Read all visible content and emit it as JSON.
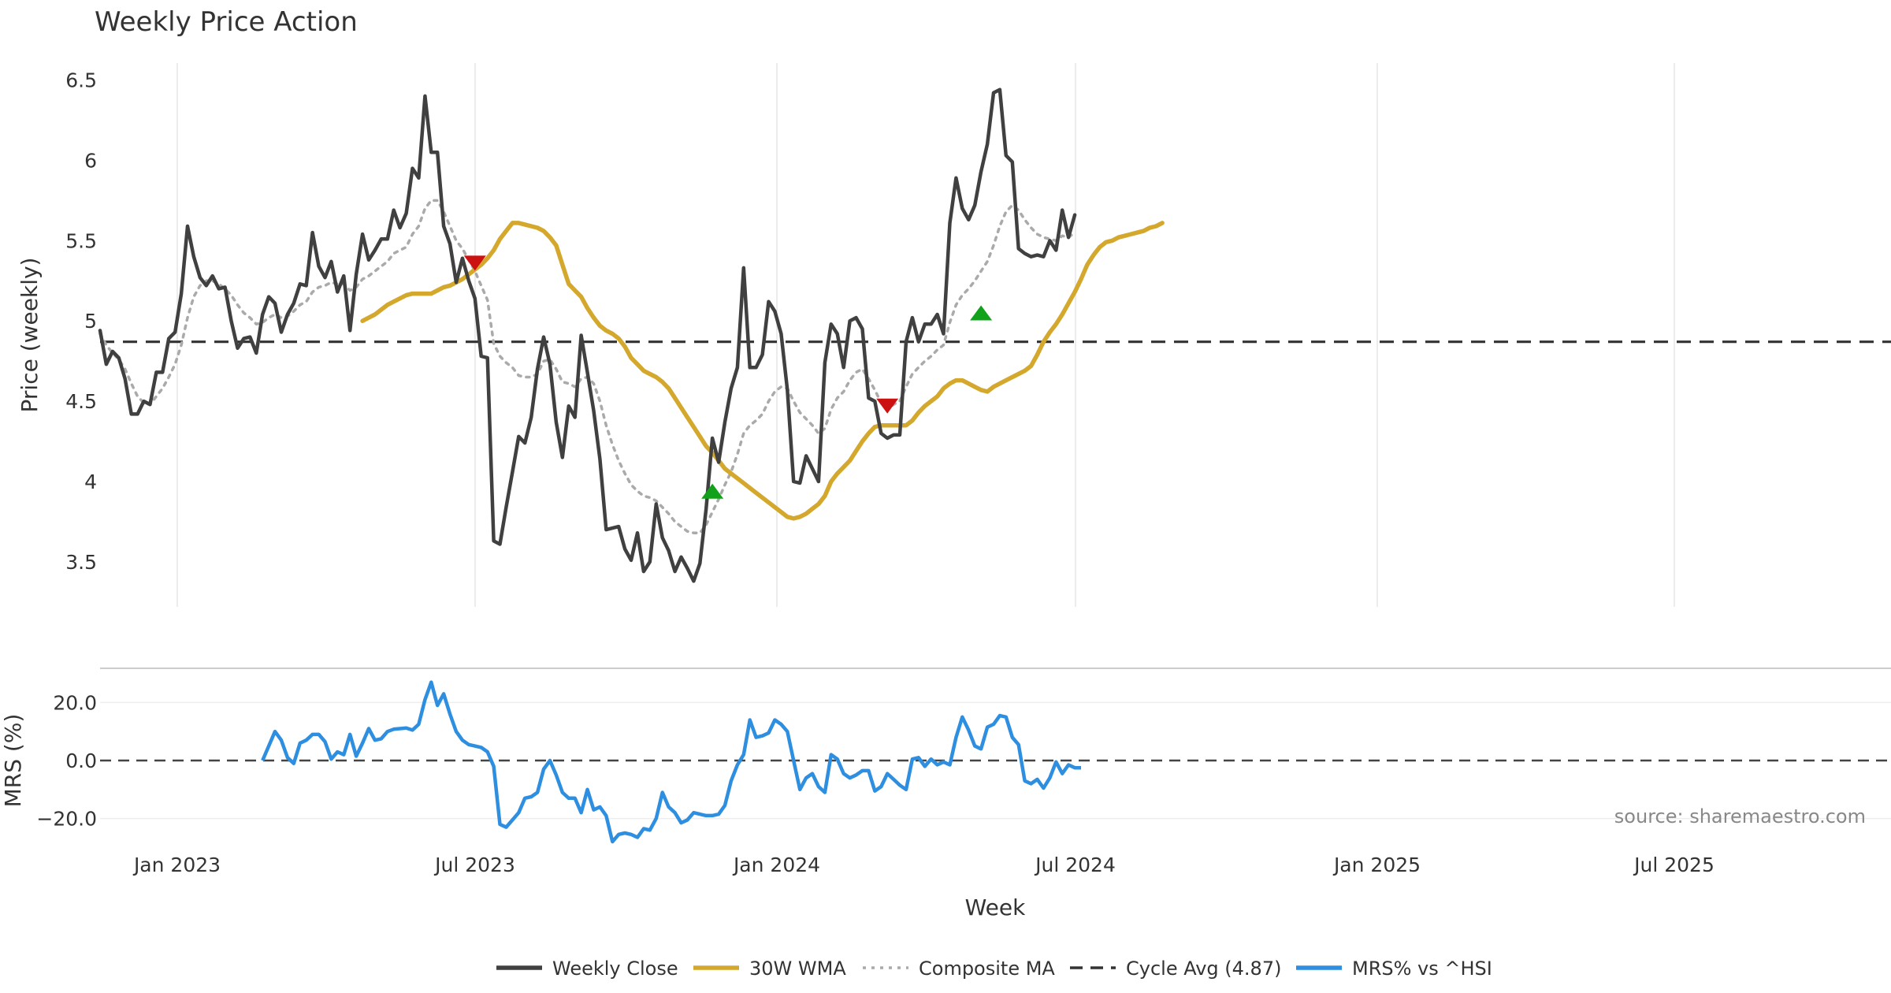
{
  "chart_data": {
    "type": "line",
    "title": "Weekly Price Action",
    "xlabel": "Week",
    "source_label": "source: sharemaestro.com",
    "x_ticks": [
      "Jan 2023",
      "Jul 2023",
      "Jan 2024",
      "Jul 2024",
      "Jan 2025",
      "Jul 2025"
    ],
    "price_panel": {
      "ylabel": "Price (weekly)",
      "ylim": [
        3.25,
        6.6
      ],
      "yticks": [
        "3.5",
        "4",
        "4.5",
        "5",
        "5.5",
        "6",
        "6.5"
      ],
      "series": [
        {
          "name": "Weekly Close",
          "color": "#404040",
          "values": [
            4.94,
            4.73,
            4.81,
            4.77,
            4.64,
            4.42,
            4.42,
            4.5,
            4.48,
            4.68,
            4.68,
            4.89,
            4.93,
            5.17,
            5.59,
            5.4,
            5.27,
            5.22,
            5.28,
            5.2,
            5.21,
            5.0,
            4.83,
            4.89,
            4.9,
            4.8,
            5.04,
            5.15,
            5.11,
            4.93,
            5.04,
            5.11,
            5.23,
            5.22,
            5.55,
            5.34,
            5.27,
            5.37,
            5.18,
            5.28,
            4.94,
            5.29,
            5.54,
            5.38,
            5.44,
            5.51,
            5.51,
            5.69,
            5.58,
            5.67,
            5.95,
            5.89,
            6.4,
            6.05,
            6.05,
            5.59,
            5.48,
            5.24,
            5.39,
            5.25,
            5.14,
            4.78,
            4.77,
            3.63,
            3.61,
            3.84,
            4.06,
            4.28,
            4.24,
            4.4,
            4.7,
            4.9,
            4.73,
            4.37,
            4.15,
            4.47,
            4.4,
            4.91,
            4.68,
            4.44,
            4.14,
            3.7,
            3.71,
            3.72,
            3.58,
            3.51,
            3.68,
            3.44,
            3.5,
            3.86,
            3.65,
            3.57,
            3.44,
            3.53,
            3.46,
            3.38,
            3.49,
            3.83,
            4.27,
            4.12,
            4.37,
            4.58,
            4.71,
            5.33,
            4.71,
            4.71,
            4.79,
            5.12,
            5.06,
            4.92,
            4.57,
            4.0,
            3.99,
            4.16,
            4.08,
            4.0,
            4.74,
            4.98,
            4.92,
            4.71,
            5.0,
            5.02,
            4.95,
            4.52,
            4.5,
            4.3,
            4.27,
            4.29,
            4.29,
            4.87,
            5.02,
            4.87,
            4.98,
            4.98,
            5.04,
            4.92,
            5.61,
            5.89,
            5.7,
            5.63,
            5.72,
            5.93,
            6.1,
            6.42,
            6.44,
            6.03,
            5.99,
            5.45,
            5.42,
            5.4,
            5.41,
            5.4,
            5.5,
            5.44,
            5.69,
            5.52,
            5.66
          ]
        },
        {
          "name": "30W WMA",
          "color": "#D4A82C",
          "values": [
            5.0,
            5.02,
            5.04,
            5.07,
            5.1,
            5.12,
            5.14,
            5.16,
            5.17,
            5.17,
            5.17,
            5.17,
            5.19,
            5.21,
            5.22,
            5.24,
            5.26,
            5.29,
            5.32,
            5.35,
            5.39,
            5.44,
            5.51,
            5.56,
            5.61,
            5.61,
            5.6,
            5.59,
            5.58,
            5.56,
            5.52,
            5.47,
            5.35,
            5.23,
            5.19,
            5.15,
            5.08,
            5.02,
            4.97,
            4.94,
            4.92,
            4.89,
            4.84,
            4.77,
            4.73,
            4.69,
            4.67,
            4.65,
            4.62,
            4.58,
            4.52,
            4.46,
            4.4,
            4.34,
            4.28,
            4.22,
            4.18,
            4.13,
            4.08,
            4.05,
            4.02,
            3.99,
            3.96,
            3.93,
            3.9,
            3.87,
            3.84,
            3.81,
            3.78,
            3.77,
            3.78,
            3.8,
            3.83,
            3.86,
            3.91,
            4.0,
            4.05,
            4.09,
            4.13,
            4.19,
            4.25,
            4.3,
            4.34,
            4.35,
            4.35,
            4.35,
            4.35,
            4.35,
            4.38,
            4.43,
            4.47,
            4.5,
            4.53,
            4.58,
            4.61,
            4.63,
            4.63,
            4.61,
            4.59,
            4.57,
            4.56,
            4.59,
            4.61,
            4.63,
            4.65,
            4.67,
            4.69,
            4.72,
            4.79,
            4.87,
            4.93,
            4.98,
            5.04,
            5.11,
            5.18,
            5.26,
            5.35,
            5.41,
            5.46,
            5.49,
            5.5,
            5.52,
            5.53,
            5.54,
            5.55,
            5.56,
            5.58,
            5.59,
            5.61
          ]
        },
        {
          "name": "Composite MA",
          "color": "#AAAAAA",
          "values": [
            4.92,
            4.85,
            4.8,
            4.76,
            4.7,
            4.61,
            4.53,
            4.49,
            4.48,
            4.53,
            4.58,
            4.65,
            4.73,
            4.85,
            5.02,
            5.15,
            5.22,
            5.25,
            5.25,
            5.23,
            5.2,
            5.16,
            5.1,
            5.05,
            5.02,
            4.98,
            4.99,
            5.02,
            5.04,
            5.02,
            5.03,
            5.06,
            5.1,
            5.12,
            5.18,
            5.21,
            5.22,
            5.24,
            5.23,
            5.23,
            5.19,
            5.21,
            5.26,
            5.28,
            5.31,
            5.34,
            5.37,
            5.42,
            5.44,
            5.46,
            5.54,
            5.59,
            5.7,
            5.75,
            5.75,
            5.68,
            5.59,
            5.5,
            5.45,
            5.38,
            5.31,
            5.22,
            5.13,
            4.86,
            4.78,
            4.74,
            4.71,
            4.66,
            4.65,
            4.65,
            4.67,
            4.75,
            4.76,
            4.7,
            4.62,
            4.61,
            4.59,
            4.64,
            4.65,
            4.61,
            4.5,
            4.35,
            4.23,
            4.13,
            4.05,
            3.98,
            3.94,
            3.91,
            3.9,
            3.88,
            3.84,
            3.8,
            3.75,
            3.72,
            3.69,
            3.68,
            3.68,
            3.73,
            3.81,
            3.89,
            3.98,
            4.06,
            4.17,
            4.3,
            4.35,
            4.38,
            4.42,
            4.5,
            4.56,
            4.59,
            4.58,
            4.5,
            4.43,
            4.39,
            4.35,
            4.3,
            4.33,
            4.45,
            4.52,
            4.56,
            4.63,
            4.68,
            4.7,
            4.64,
            4.57,
            4.49,
            4.45,
            4.48,
            4.5,
            4.59,
            4.67,
            4.71,
            4.75,
            4.78,
            4.82,
            4.85,
            4.99,
            5.1,
            5.16,
            5.2,
            5.25,
            5.31,
            5.37,
            5.47,
            5.59,
            5.68,
            5.72,
            5.69,
            5.63,
            5.58,
            5.54,
            5.52,
            5.51,
            5.5,
            5.53,
            5.52,
            5.55
          ]
        }
      ],
      "cycle_avg": {
        "name": "Cycle Avg (4.87)",
        "value": 4.87,
        "color": "#333333"
      },
      "signals": [
        {
          "type": "sell",
          "index": 60,
          "price": 5.36,
          "color": "#CC1111"
        },
        {
          "type": "buy",
          "index": 98,
          "price": 3.94,
          "color": "#11A11B"
        },
        {
          "type": "sell",
          "index": 126,
          "price": 4.47,
          "color": "#CC1111"
        },
        {
          "type": "buy",
          "index": 141,
          "price": 5.05,
          "color": "#11A11B"
        }
      ]
    },
    "mrs_panel": {
      "ylabel": "MRS (%)",
      "ylim": [
        -32,
        32
      ],
      "yticks": [
        "−20.0",
        "0.0",
        "20.0"
      ],
      "zero_line": 0,
      "series": [
        {
          "name": "MRS% vs ^HSI",
          "color": "#2E8FE0",
          "start_index": 26,
          "values": [
            0.0,
            5.0,
            10.0,
            7.0,
            1.0,
            -1.0,
            6.0,
            7.0,
            9.0,
            9.0,
            6.5,
            0.5,
            3.0,
            2.0,
            9.0,
            1.5,
            6.0,
            11.0,
            7.0,
            7.5,
            10.0,
            10.8,
            11.0,
            11.2,
            10.5,
            12.5,
            21.0,
            27.0,
            19.0,
            23.0,
            16.0,
            10.0,
            7.0,
            5.5,
            5.0,
            4.5,
            3.0,
            -2.0,
            -22.0,
            -23.0,
            -20.5,
            -18.0,
            -13.0,
            -12.5,
            -11.0,
            -3.0,
            0.0,
            -5.0,
            -11.0,
            -13.0,
            -13.0,
            -18.0,
            -10.0,
            -17.0,
            -16.0,
            -19.0,
            -28.0,
            -25.5,
            -25.0,
            -25.5,
            -26.5,
            -23.5,
            -24.0,
            -20.0,
            -11.0,
            -16.0,
            -18.0,
            -21.5,
            -20.5,
            -18.0,
            -18.5,
            -19.0,
            -19.0,
            -18.5,
            -15.5,
            -7.0,
            -1.5,
            2.0,
            14.0,
            8.0,
            8.5,
            9.5,
            14.0,
            12.5,
            10.0,
            0.0,
            -10.0,
            -6.0,
            -4.5,
            -9.0,
            -11.0,
            2.0,
            0.5,
            -4.5,
            -6.0,
            -5.0,
            -3.5,
            -3.5,
            -10.5,
            -9.0,
            -4.5,
            -6.5,
            -8.5,
            -10.0,
            0.5,
            1.0,
            -2.0,
            0.5,
            -1.5,
            -0.5,
            -1.5,
            8.0,
            15.0,
            10.5,
            5.0,
            4.0,
            11.5,
            12.5,
            15.5,
            15.0,
            8.0,
            5.5,
            -7.0,
            -8.0,
            -6.5,
            -9.5,
            -6.0,
            -0.5,
            -4.5,
            -1.5,
            -2.5,
            -2.5
          ]
        }
      ]
    },
    "legend": [
      {
        "label": "Weekly Close",
        "color": "#404040",
        "style": "solid"
      },
      {
        "label": "30W WMA",
        "color": "#D4A82C",
        "style": "solid"
      },
      {
        "label": "Composite MA",
        "color": "#AAAAAA",
        "style": "dotted"
      },
      {
        "label": "Cycle Avg (4.87)",
        "color": "#333333",
        "style": "dashed"
      },
      {
        "label": "MRS% vs ^HSI",
        "color": "#2E8FE0",
        "style": "solid"
      }
    ]
  }
}
